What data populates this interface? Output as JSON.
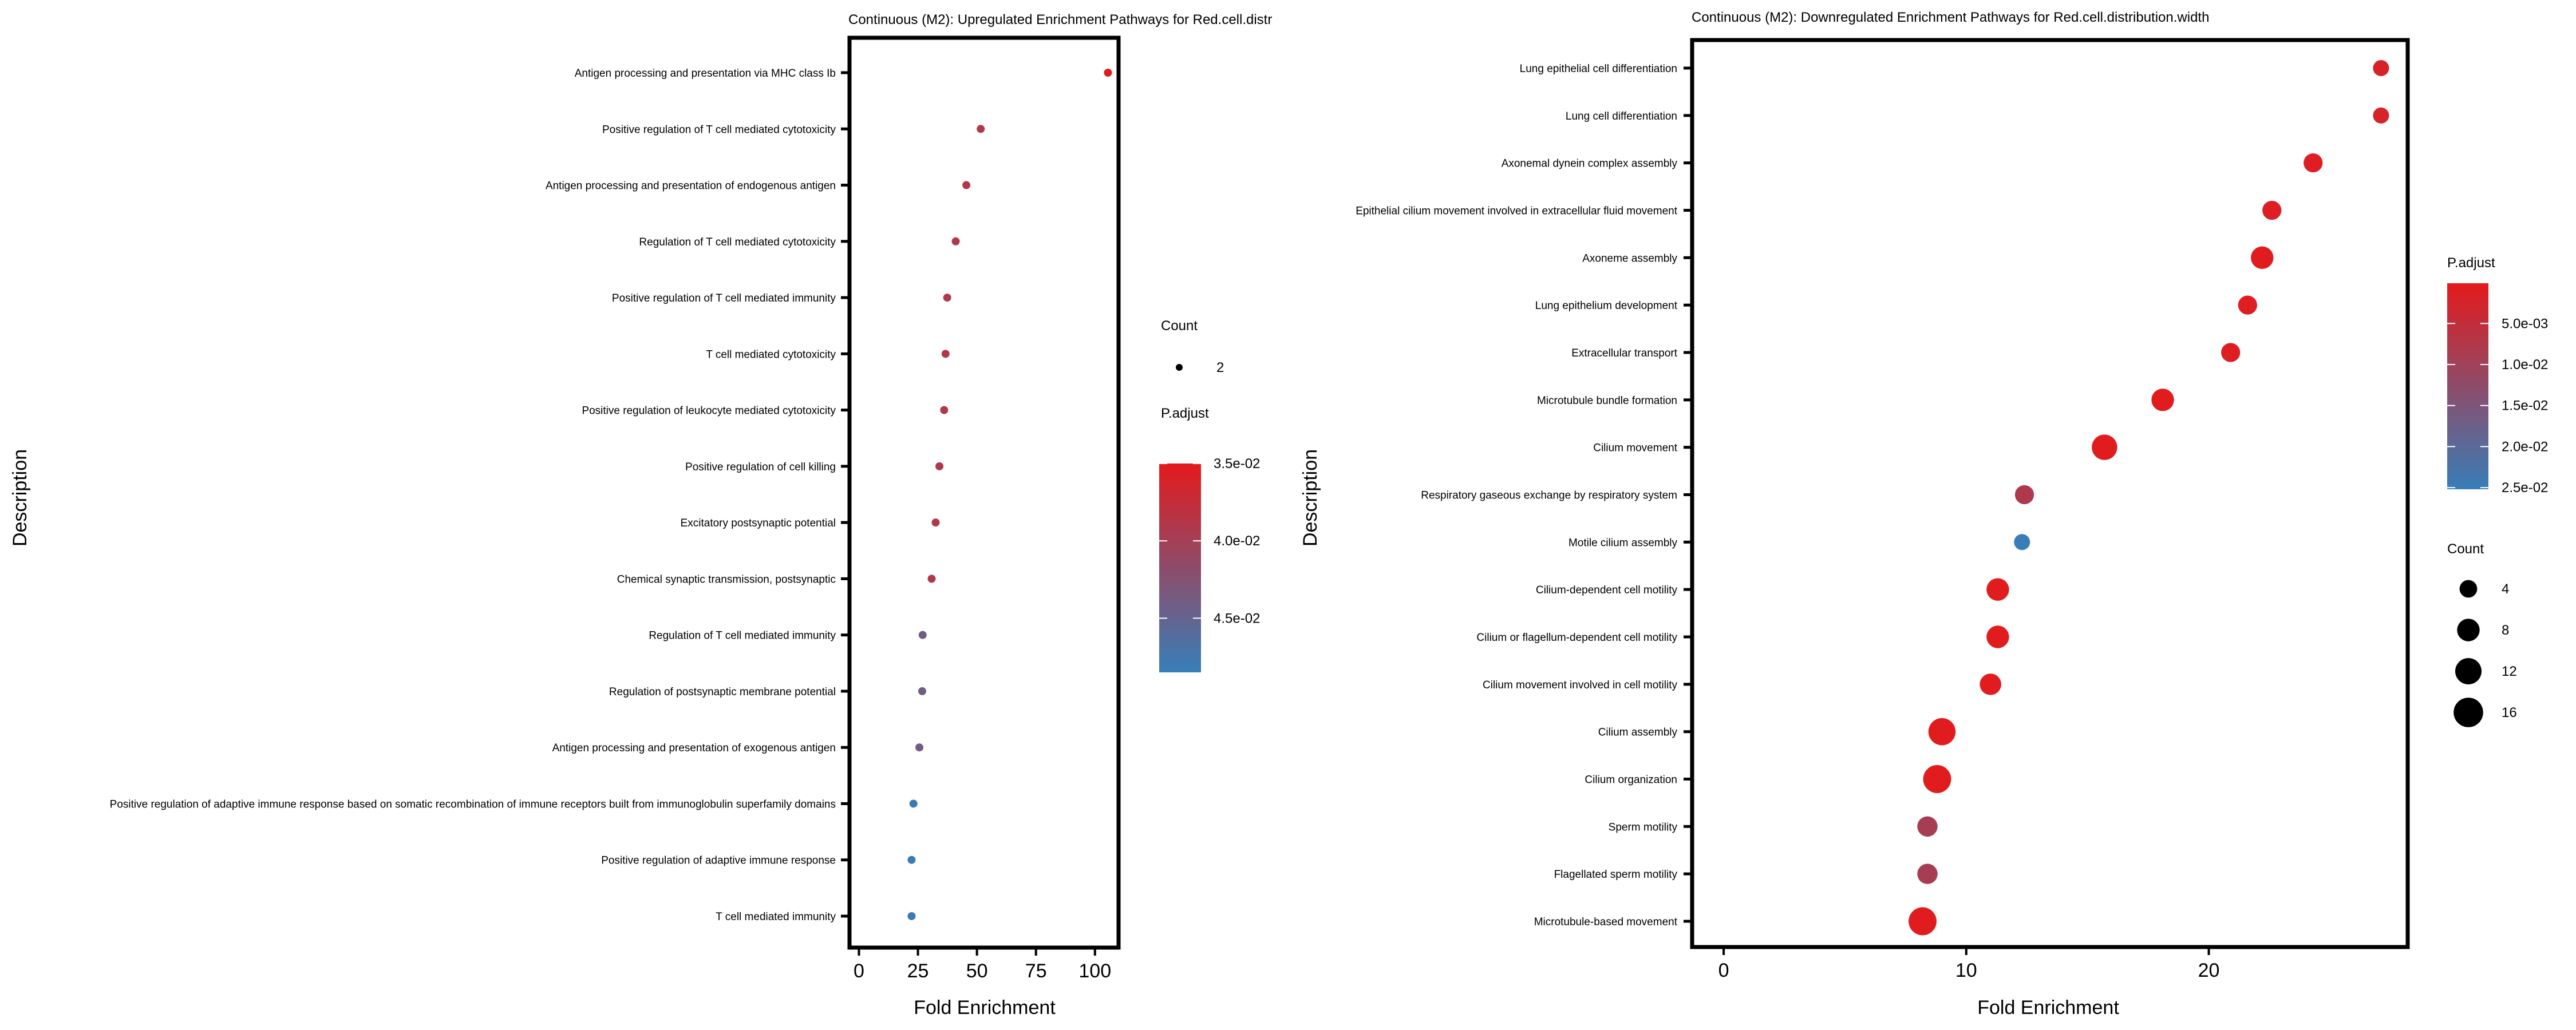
{
  "chart_data": [
    {
      "type": "scatter",
      "title": "Continuous (M2): Upregulated Enrichment Pathways for Red.cell.distr",
      "xlabel": "Fold Enrichment",
      "ylabel": "Description",
      "xlim": [
        -4,
        110
      ],
      "xticks": [
        0,
        25,
        50,
        75,
        100
      ],
      "grid": false,
      "legend_position": "right",
      "categories": [
        "Antigen processing and presentation via MHC class Ib",
        "Positive regulation of T cell mediated cytotoxicity",
        "Antigen processing and presentation of endogenous antigen",
        "Regulation of T cell mediated cytotoxicity",
        "Positive regulation of T cell mediated immunity",
        "T cell mediated cytotoxicity",
        "Positive regulation of leukocyte mediated cytotoxicity",
        "Positive regulation of cell killing",
        "Excitatory postsynaptic potential",
        "Chemical synaptic transmission, postsynaptic",
        "Regulation of T cell mediated immunity",
        "Regulation of postsynaptic membrane potential",
        "Antigen processing and presentation of exogenous antigen",
        "Positive regulation of adaptive immune response based on somatic recombination of immune receptors built from immunoglobulin superfamily domains",
        "Positive regulation of adaptive immune response",
        "T cell mediated immunity"
      ],
      "fold_enrichment": [
        105.5,
        51.6,
        45.5,
        41.0,
        37.4,
        36.7,
        36.1,
        34.1,
        32.5,
        30.8,
        27.0,
        26.8,
        25.6,
        23.1,
        22.3,
        22.3
      ],
      "p_adjust": [
        0.035,
        0.039,
        0.039,
        0.039,
        0.039,
        0.039,
        0.039,
        0.039,
        0.039,
        0.039,
        0.044,
        0.044,
        0.044,
        0.048,
        0.048,
        0.048
      ],
      "count": [
        2,
        2,
        2,
        2,
        2,
        2,
        2,
        2,
        2,
        2,
        2,
        2,
        2,
        2,
        2,
        2
      ],
      "legend_count": {
        "title": "Count",
        "values": [
          2
        ]
      },
      "legend_color": {
        "title": "P.adjust",
        "labels": [
          "3.5e-02",
          "4.0e-02",
          "4.5e-02"
        ],
        "values": [
          0.035,
          0.04,
          0.045
        ],
        "range": [
          0.035,
          0.0485
        ],
        "low_color": "#e41a1c",
        "high_color": "#377eb8"
      }
    },
    {
      "type": "scatter",
      "title": "Continuous (M2): Downregulated Enrichment Pathways for Red.cell.distribution.width",
      "xlabel": "Fold Enrichment",
      "ylabel": "Description",
      "xlim": [
        -1.3,
        28.2
      ],
      "xticks": [
        0,
        10,
        20
      ],
      "grid": false,
      "legend_position": "right",
      "categories": [
        "Lung epithelial cell differentiation",
        "Lung cell differentiation",
        "Axonemal dynein complex assembly",
        "Epithelial cilium movement involved in extracellular fluid movement",
        "Axoneme assembly",
        "Lung epithelium development",
        "Extracellular transport",
        "Microtubule bundle formation",
        "Cilium movement",
        "Respiratory gaseous exchange by respiratory system",
        "Motile cilium assembly",
        "Cilium-dependent cell motility",
        "Cilium or flagellum-dependent cell motility",
        "Cilium movement involved in cell motility",
        "Cilium assembly",
        "Cilium organization",
        "Sperm motility",
        "Flagellated sperm motility",
        "Microtubule-based movement"
      ],
      "fold_enrichment": [
        27.1,
        27.1,
        24.3,
        22.6,
        22.2,
        21.6,
        20.9,
        18.1,
        15.7,
        12.4,
        12.3,
        11.3,
        11.3,
        11.0,
        9.0,
        8.8,
        8.4,
        8.4,
        8.2
      ],
      "p_adjust": [
        0.002,
        0.002,
        0.001,
        0.001,
        0.0005,
        0.001,
        0.001,
        0.0005,
        0.0005,
        0.008,
        0.025,
        0.0005,
        0.0005,
        0.0005,
        0.0005,
        0.0005,
        0.009,
        0.009,
        0.0005
      ],
      "count": [
        3,
        3,
        5,
        5,
        8,
        5,
        5,
        8,
        11,
        5,
        3,
        8,
        8,
        7,
        13,
        14,
        6,
        6,
        14
      ],
      "legend_count": {
        "title": "Count",
        "values": [
          4,
          8,
          12,
          16
        ]
      },
      "legend_color": {
        "title": "P.adjust",
        "labels": [
          "5.0e-03",
          "1.0e-02",
          "1.5e-02",
          "2.0e-02",
          "2.5e-02"
        ],
        "values": [
          0.005,
          0.01,
          0.015,
          0.02,
          0.025
        ],
        "range": [
          0.0001,
          0.0252
        ],
        "low_color": "#e41a1c",
        "high_color": "#377eb8"
      }
    }
  ]
}
